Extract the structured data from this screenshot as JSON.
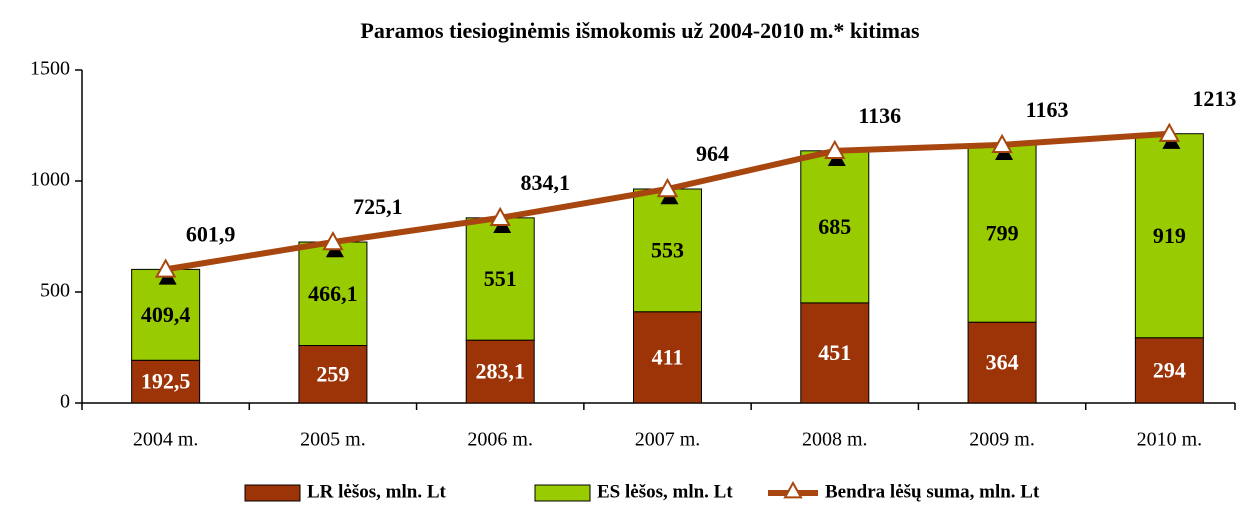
{
  "chart_data": {
    "type": "bar",
    "stacked": true,
    "title": "Paramos tiesioginėmis išmokomis už 2004-2010 m.* kitimas",
    "categories": [
      "2004 m.",
      "2005 m.",
      "2006 m.",
      "2007 m.",
      "2008 m.",
      "2009 m.",
      "2010 m."
    ],
    "series": [
      {
        "name": "LR lėšos, mln. Lt",
        "type": "bar",
        "color": "#9c3408",
        "values": [
          192.5,
          259,
          283.1,
          411,
          451,
          364,
          294
        ],
        "value_labels": [
          "192,5",
          "259",
          "283,1",
          "411",
          "451",
          "364",
          "294"
        ]
      },
      {
        "name": "ES lėšos, mln. Lt",
        "type": "bar",
        "color": "#99cc00",
        "values": [
          409.4,
          466.1,
          551,
          553,
          685,
          799,
          919
        ],
        "value_labels": [
          "409,4",
          "466,1",
          "551",
          "553",
          "685",
          "799",
          "919"
        ]
      },
      {
        "name": "Bendra lėšų suma, mln. Lt",
        "type": "line",
        "color": "#a8460f",
        "values": [
          601.9,
          725.1,
          834.1,
          964,
          1136,
          1163,
          1213
        ],
        "value_labels": [
          "601,9",
          "725,1",
          "834,1",
          "964",
          "1136",
          "1163",
          "1213"
        ]
      }
    ],
    "ylim": [
      0,
      1500
    ],
    "yticks": [
      0,
      500,
      1000,
      1500
    ],
    "grid": false,
    "legend": "bottom"
  }
}
